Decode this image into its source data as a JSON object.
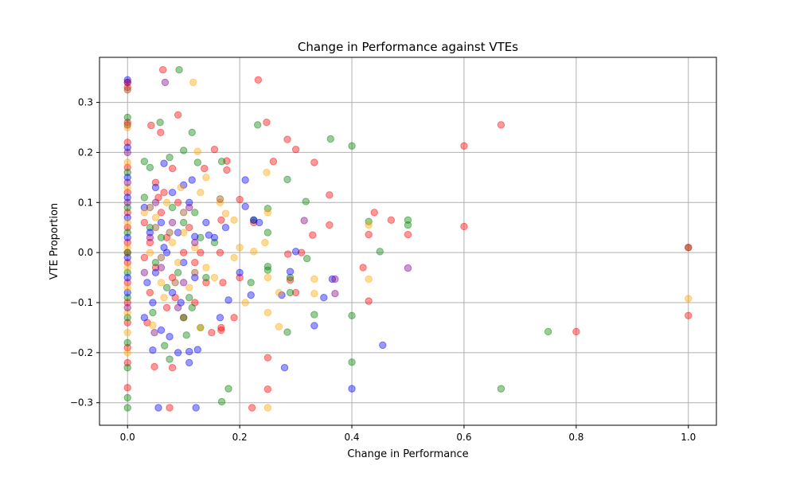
{
  "chart_data": {
    "type": "scatter",
    "title": "Change in Performance against VTEs",
    "xlabel": "Change in Performance",
    "ylabel": "VTE Proportion",
    "xlim": [
      -0.05,
      1.05
    ],
    "ylim": [
      -0.345,
      0.39
    ],
    "x_ticks": [
      0.0,
      0.2,
      0.4,
      0.6,
      0.8,
      1.0
    ],
    "x_tick_labels": [
      "0.0",
      "0.2",
      "0.4",
      "0.6",
      "0.8",
      "1.0"
    ],
    "y_ticks": [
      -0.3,
      -0.2,
      -0.1,
      0.0,
      0.1,
      0.2,
      0.3
    ],
    "y_tick_labels": [
      "−0.3",
      "−0.2",
      "−0.1",
      "0.0",
      "0.1",
      "0.2",
      "0.3"
    ],
    "grid": true,
    "marker_alpha": 0.4,
    "series": [
      {
        "color": "#ff0000",
        "points": [
          [
            0.0,
            0.34
          ],
          [
            0.0,
            0.33
          ],
          [
            0.0,
            0.26
          ],
          [
            0.0,
            0.22
          ],
          [
            0.0,
            0.17
          ],
          [
            0.0,
            0.12
          ],
          [
            0.0,
            0.08
          ],
          [
            0.0,
            0.05
          ],
          [
            0.0,
            0.02
          ],
          [
            0.0,
            -0.02
          ],
          [
            0.0,
            -0.06
          ],
          [
            0.0,
            -0.1
          ],
          [
            0.0,
            -0.14
          ],
          [
            0.0,
            -0.19
          ],
          [
            0.0,
            -0.22
          ],
          [
            0.0,
            -0.27
          ],
          [
            0.063,
            0.365
          ],
          [
            0.233,
            0.345
          ],
          [
            0.09,
            0.275
          ],
          [
            0.042,
            0.254
          ],
          [
            0.059,
            0.24
          ],
          [
            0.248,
            0.26
          ],
          [
            0.285,
            0.226
          ],
          [
            0.3,
            0.206
          ],
          [
            0.155,
            0.206
          ],
          [
            0.26,
            0.182
          ],
          [
            0.177,
            0.183
          ],
          [
            0.333,
            0.18
          ],
          [
            0.137,
            0.168
          ],
          [
            0.177,
            0.165
          ],
          [
            0.08,
            0.168
          ],
          [
            0.6,
            0.213
          ],
          [
            0.666,
            0.255
          ],
          [
            0.05,
            0.14
          ],
          [
            0.065,
            0.12
          ],
          [
            0.2,
            0.106
          ],
          [
            0.36,
            0.115
          ],
          [
            0.44,
            0.08
          ],
          [
            0.47,
            0.065
          ],
          [
            0.5,
            0.036
          ],
          [
            0.43,
            0.036
          ],
          [
            0.6,
            0.052
          ],
          [
            0.225,
            0.06
          ],
          [
            0.167,
            0.065
          ],
          [
            0.31,
            0.0
          ],
          [
            0.286,
            -0.003
          ],
          [
            0.42,
            -0.03
          ],
          [
            0.29,
            -0.055
          ],
          [
            0.3,
            -0.08
          ],
          [
            0.36,
            0.055
          ],
          [
            0.33,
            0.035
          ],
          [
            0.1,
            -0.13
          ],
          [
            0.07,
            -0.11
          ],
          [
            0.035,
            -0.14
          ],
          [
            0.12,
            -0.1
          ],
          [
            0.167,
            -0.155
          ],
          [
            0.167,
            -0.15
          ],
          [
            0.2,
            -0.05
          ],
          [
            0.25,
            -0.21
          ],
          [
            0.25,
            -0.273
          ],
          [
            0.222,
            -0.31
          ],
          [
            0.08,
            -0.23
          ],
          [
            0.048,
            -0.228
          ],
          [
            0.075,
            -0.31
          ],
          [
            0.15,
            -0.16
          ],
          [
            0.19,
            -0.13
          ],
          [
            0.43,
            -0.097
          ],
          [
            0.8,
            -0.158
          ],
          [
            1.0,
            -0.126
          ],
          [
            1.0,
            0.01
          ],
          [
            0.03,
            0.06
          ],
          [
            0.04,
            0.02
          ],
          [
            0.05,
            -0.03
          ],
          [
            0.06,
            0.08
          ],
          [
            0.07,
            0.03
          ],
          [
            0.08,
            -0.05
          ],
          [
            0.09,
            0.1
          ],
          [
            0.1,
            0.0
          ],
          [
            0.11,
            0.05
          ],
          [
            0.12,
            -0.02
          ],
          [
            0.04,
            -0.08
          ],
          [
            0.055,
            0.11
          ],
          [
            0.085,
            -0.09
          ],
          [
            0.13,
            0.0
          ],
          [
            0.14,
            -0.06
          ],
          [
            0.165,
            0.0
          ],
          [
            0.17,
            -0.06
          ],
          [
            0.03,
            -0.01
          ]
        ]
      },
      {
        "color": "#008000",
        "points": [
          [
            0.0,
            0.27
          ],
          [
            0.0,
            0.16
          ],
          [
            0.0,
            0.09
          ],
          [
            0.0,
            0.04
          ],
          [
            0.0,
            0.0
          ],
          [
            0.0,
            -0.04
          ],
          [
            0.0,
            -0.09
          ],
          [
            0.0,
            -0.13
          ],
          [
            0.0,
            -0.18
          ],
          [
            0.0,
            -0.23
          ],
          [
            0.0,
            -0.29
          ],
          [
            0.0,
            -0.31
          ],
          [
            0.092,
            0.365
          ],
          [
            0.058,
            0.26
          ],
          [
            0.115,
            0.24
          ],
          [
            0.232,
            0.255
          ],
          [
            0.1,
            0.204
          ],
          [
            0.362,
            0.227
          ],
          [
            0.4,
            0.213
          ],
          [
            0.075,
            0.19
          ],
          [
            0.125,
            0.18
          ],
          [
            0.168,
            0.182
          ],
          [
            0.03,
            0.182
          ],
          [
            0.04,
            0.17
          ],
          [
            0.285,
            0.146
          ],
          [
            0.318,
            0.102
          ],
          [
            0.25,
            0.088
          ],
          [
            0.43,
            0.062
          ],
          [
            0.5,
            0.065
          ],
          [
            0.5,
            0.055
          ],
          [
            0.45,
            0.002
          ],
          [
            0.25,
            0.04
          ],
          [
            0.32,
            -0.012
          ],
          [
            0.25,
            -0.028
          ],
          [
            0.25,
            -0.035
          ],
          [
            0.29,
            -0.05
          ],
          [
            0.29,
            -0.08
          ],
          [
            0.333,
            -0.124
          ],
          [
            0.4,
            -0.126
          ],
          [
            0.285,
            -0.159
          ],
          [
            0.4,
            -0.219
          ],
          [
            0.75,
            -0.158
          ],
          [
            0.666,
            -0.272
          ],
          [
            0.18,
            -0.272
          ],
          [
            0.168,
            -0.298
          ],
          [
            0.066,
            -0.186
          ],
          [
            0.075,
            -0.213
          ],
          [
            0.1,
            -0.13
          ],
          [
            0.13,
            -0.15
          ],
          [
            0.105,
            -0.165
          ],
          [
            0.22,
            -0.06
          ],
          [
            0.225,
            0.065
          ],
          [
            0.03,
            0.11
          ],
          [
            0.04,
            0.05
          ],
          [
            0.05,
            -0.02
          ],
          [
            0.06,
            0.03
          ],
          [
            0.07,
            -0.07
          ],
          [
            0.08,
            0.09
          ],
          [
            0.09,
            -0.04
          ],
          [
            0.1,
            0.06
          ],
          [
            0.11,
            -0.09
          ],
          [
            0.12,
            0.08
          ],
          [
            0.13,
            0.03
          ],
          [
            0.14,
            -0.05
          ],
          [
            0.045,
            -0.12
          ],
          [
            0.115,
            -0.11
          ],
          [
            0.155,
            0.02
          ]
        ]
      },
      {
        "color": "#0000ff",
        "points": [
          [
            0.0,
            0.345
          ],
          [
            0.0,
            0.21
          ],
          [
            0.0,
            0.15
          ],
          [
            0.0,
            0.11
          ],
          [
            0.0,
            0.07
          ],
          [
            0.0,
            0.03
          ],
          [
            0.0,
            -0.01
          ],
          [
            0.0,
            -0.05
          ],
          [
            0.0,
            -0.08
          ],
          [
            0.065,
            0.178
          ],
          [
            0.1,
            0.135
          ],
          [
            0.115,
            0.145
          ],
          [
            0.21,
            0.145
          ],
          [
            0.21,
            0.092
          ],
          [
            0.225,
            0.065
          ],
          [
            0.235,
            0.06
          ],
          [
            0.175,
            0.05
          ],
          [
            0.145,
            0.035
          ],
          [
            0.12,
            0.032
          ],
          [
            0.2,
            -0.04
          ],
          [
            0.22,
            -0.085
          ],
          [
            0.18,
            -0.095
          ],
          [
            0.29,
            -0.038
          ],
          [
            0.3,
            0.002
          ],
          [
            0.275,
            -0.085
          ],
          [
            0.35,
            -0.09
          ],
          [
            0.333,
            -0.146
          ],
          [
            0.365,
            -0.053
          ],
          [
            0.28,
            -0.23
          ],
          [
            0.4,
            -0.272
          ],
          [
            0.455,
            -0.185
          ],
          [
            0.122,
            -0.31
          ],
          [
            0.055,
            -0.31
          ],
          [
            0.045,
            -0.195
          ],
          [
            0.09,
            -0.2
          ],
          [
            0.11,
            -0.198
          ],
          [
            0.125,
            -0.194
          ],
          [
            0.11,
            -0.22
          ],
          [
            0.075,
            -0.168
          ],
          [
            0.06,
            -0.155
          ],
          [
            0.03,
            -0.13
          ],
          [
            0.045,
            -0.1
          ],
          [
            0.165,
            -0.13
          ],
          [
            0.03,
            0.09
          ],
          [
            0.04,
            0.04
          ],
          [
            0.05,
            -0.04
          ],
          [
            0.06,
            0.06
          ],
          [
            0.07,
            0.0
          ],
          [
            0.08,
            -0.08
          ],
          [
            0.09,
            0.04
          ],
          [
            0.1,
            -0.02
          ],
          [
            0.11,
            0.1
          ],
          [
            0.12,
            -0.05
          ],
          [
            0.05,
            0.13
          ],
          [
            0.08,
            0.12
          ],
          [
            0.035,
            -0.06
          ],
          [
            0.065,
            0.01
          ],
          [
            0.095,
            -0.1
          ],
          [
            0.14,
            0.06
          ],
          [
            0.155,
            0.03
          ]
        ]
      },
      {
        "color": "#ffa500",
        "points": [
          [
            0.0,
            0.25
          ],
          [
            0.0,
            0.18
          ],
          [
            0.0,
            0.13
          ],
          [
            0.0,
            0.06
          ],
          [
            0.0,
            0.01
          ],
          [
            0.0,
            -0.03
          ],
          [
            0.0,
            -0.07
          ],
          [
            0.0,
            -0.12
          ],
          [
            0.0,
            -0.16
          ],
          [
            0.0,
            -0.2
          ],
          [
            0.117,
            0.34
          ],
          [
            0.125,
            0.202
          ],
          [
            0.248,
            0.16
          ],
          [
            0.14,
            0.15
          ],
          [
            0.175,
            0.078
          ],
          [
            0.25,
            0.08
          ],
          [
            0.19,
            0.065
          ],
          [
            0.2,
            0.01
          ],
          [
            0.225,
            0.002
          ],
          [
            0.245,
            0.02
          ],
          [
            0.19,
            -0.01
          ],
          [
            0.25,
            -0.05
          ],
          [
            0.27,
            -0.08
          ],
          [
            0.21,
            -0.1
          ],
          [
            0.27,
            -0.148
          ],
          [
            0.25,
            -0.12
          ],
          [
            0.25,
            -0.31
          ],
          [
            0.333,
            -0.053
          ],
          [
            0.333,
            -0.082
          ],
          [
            0.43,
            -0.053
          ],
          [
            0.43,
            0.055
          ],
          [
            1.0,
            -0.092
          ],
          [
            0.13,
            -0.15
          ],
          [
            0.045,
            -0.145
          ],
          [
            0.03,
            0.08
          ],
          [
            0.04,
            0.0
          ],
          [
            0.05,
            0.07
          ],
          [
            0.06,
            -0.06
          ],
          [
            0.07,
            0.1
          ],
          [
            0.08,
            0.02
          ],
          [
            0.09,
            -0.02
          ],
          [
            0.1,
            0.04
          ],
          [
            0.11,
            -0.07
          ],
          [
            0.12,
            0.01
          ],
          [
            0.13,
            0.12
          ],
          [
            0.14,
            -0.03
          ],
          [
            0.065,
            -0.09
          ],
          [
            0.095,
            0.13
          ],
          [
            0.155,
            -0.05
          ],
          [
            0.165,
            0.1
          ]
        ]
      },
      {
        "color": "#800080",
        "points": [
          [
            0.0,
            0.34
          ],
          [
            0.0,
            0.2
          ],
          [
            0.0,
            0.14
          ],
          [
            0.0,
            0.1
          ],
          [
            0.0,
            -0.11
          ],
          [
            0.067,
            0.34
          ],
          [
            0.315,
            0.064
          ],
          [
            0.37,
            -0.053
          ],
          [
            0.37,
            -0.082
          ],
          [
            0.5,
            -0.031
          ],
          [
            0.048,
            -0.16
          ],
          [
            0.04,
            0.03
          ],
          [
            0.06,
            -0.03
          ],
          [
            0.08,
            0.06
          ],
          [
            0.1,
            -0.06
          ],
          [
            0.12,
            0.02
          ],
          [
            0.05,
            0.1
          ],
          [
            0.09,
            -0.11
          ],
          [
            0.03,
            -0.04
          ],
          [
            0.11,
            0.09
          ]
        ]
      },
      {
        "color": "#8b4513",
        "points": [
          [
            0.0,
            0.325
          ],
          [
            0.0,
            0.255
          ],
          [
            0.0,
            0.0
          ],
          [
            1.0,
            0.01
          ],
          [
            0.165,
            0.107
          ],
          [
            0.04,
            0.09
          ],
          [
            0.075,
            0.04
          ],
          [
            0.1,
            0.08
          ],
          [
            0.06,
            -0.01
          ],
          [
            0.085,
            -0.06
          ],
          [
            0.12,
            -0.04
          ],
          [
            0.05,
            0.05
          ]
        ]
      }
    ]
  }
}
